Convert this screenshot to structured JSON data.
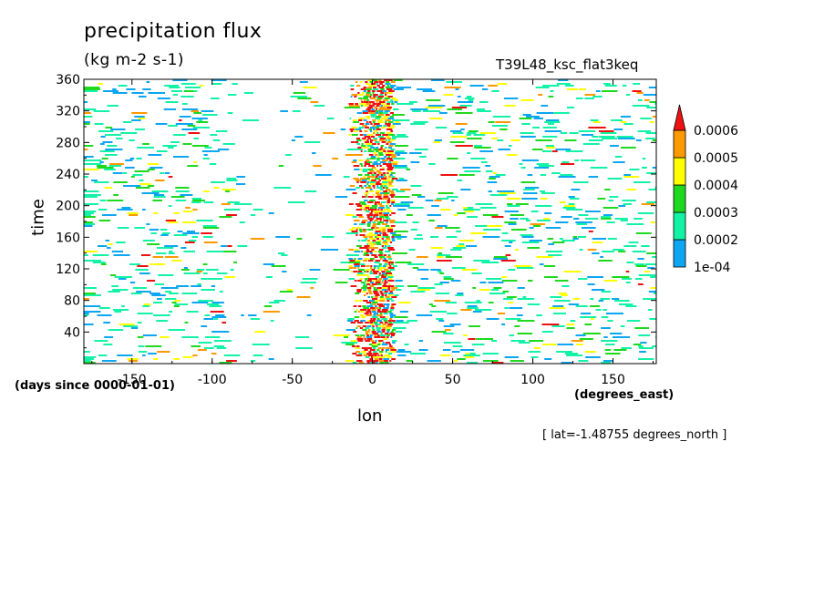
{
  "chart_data": {
    "type": "heatmap",
    "title": "precipitation flux",
    "units": "(kg m-2 s-1)",
    "run_label": "T39L48_ksc_flat3keq",
    "xlabel": "lon",
    "x_units": "(degrees_east)",
    "ylabel": "time",
    "y_units": "(days since 0000-01-01)",
    "annotation": "[ lat=-1.48755 degrees_north ]",
    "xlim": [
      -180,
      177
    ],
    "ylim": [
      0,
      360
    ],
    "x_ticks": [
      -150,
      -100,
      -50,
      0,
      50,
      100,
      150
    ],
    "x_tick_labels": [
      "-150",
      "-100",
      "-50",
      "0",
      "50",
      "100",
      "150"
    ],
    "y_ticks": [
      40,
      80,
      120,
      160,
      200,
      240,
      280,
      320,
      360
    ],
    "y_tick_labels": [
      "40",
      "80",
      "120",
      "160",
      "200",
      "240",
      "280",
      "320",
      "360"
    ],
    "colorbar": {
      "levels": [
        0.0001,
        0.0002,
        0.0003,
        0.0004,
        0.0005,
        0.0006
      ],
      "labels": [
        "1e-04",
        "0.0002",
        "0.0003",
        "0.0004",
        "0.0005",
        "0.0006"
      ],
      "colors": [
        "#0da6f2",
        "#14f2a6",
        "#1ed91e",
        "#ffff00",
        "#ff9900",
        "#ee1111"
      ],
      "extend": "max"
    },
    "features": {
      "enhanced_band_lon": [
        -15,
        12
      ],
      "eastward_streaks": true
    }
  }
}
